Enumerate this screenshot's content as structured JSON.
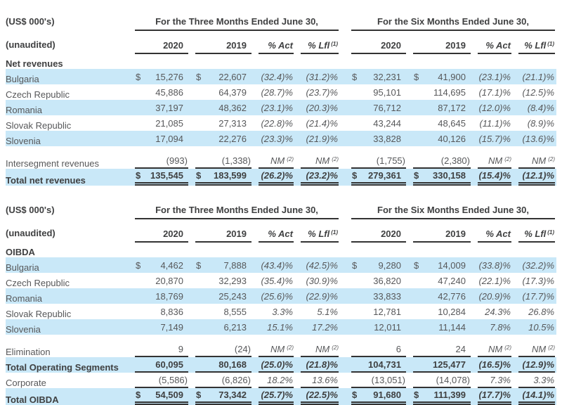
{
  "colors": {
    "row_highlight": "#c9e8f8",
    "text": "#57585a",
    "bold_text": "#3f4041",
    "rule": "#333333"
  },
  "labels": {
    "units": "(US$ 000's)",
    "unaudited": "(unaudited)"
  },
  "group_headers": [
    "For the Three Months Ended June 30,",
    "For the Six Months Ended June 30,"
  ],
  "column_headers": {
    "y2020": "2020",
    "y2019": "2019",
    "act": "% Act",
    "lfl": "% Lfl",
    "lfl_sup": "(1)"
  },
  "tables": [
    {
      "name": "net-revenues",
      "section": "Net revenues",
      "rows": [
        {
          "label": "Bulgaria",
          "shade": true,
          "cells": [
            "$|15,276",
            "$|22,607",
            "(32.4)%",
            "(31.2)%",
            "$|32,231",
            "$|41,900",
            "(23.1)%",
            "(21.1)%"
          ]
        },
        {
          "label": "Czech Republic",
          "cells": [
            "45,886",
            "64,379",
            "(28.7)%",
            "(23.7)%",
            "95,101",
            "114,695",
            "(17.1)%",
            "(12.5)%"
          ]
        },
        {
          "label": "Romania",
          "shade": true,
          "cells": [
            "37,197",
            "48,362",
            "(23.1)%",
            "(20.3)%",
            "76,712",
            "87,172",
            "(12.0)%",
            "(8.4)%"
          ]
        },
        {
          "label": "Slovak Republic",
          "cells": [
            "21,085",
            "27,313",
            "(22.8)%",
            "(21.4)%",
            "43,244",
            "48,645",
            "(11.1)%",
            "(8.9)%"
          ]
        },
        {
          "label": "Slovenia",
          "shade": true,
          "cells": [
            "17,094",
            "22,276",
            "(23.3)%",
            "(21.9)%",
            "33,828",
            "40,126",
            "(15.7)%",
            "(13.6)%"
          ]
        },
        {
          "label": "Intersegment revenues",
          "gap": true,
          "rule": "below",
          "cells": [
            "(993)",
            "(1,338)",
            "NM^(2)",
            "NM^(2)",
            "(1,755)",
            "(2,380)",
            "NM^(2)",
            "NM^(2)"
          ]
        },
        {
          "label": "Total net revenues",
          "shade": true,
          "bold": true,
          "rule": "double",
          "cells": [
            "$|135,545",
            "$|183,599",
            "(26.2)%",
            "(23.2)%",
            "$|279,361",
            "$|330,158",
            "(15.4)%",
            "(12.1)%"
          ]
        }
      ]
    },
    {
      "name": "oibda",
      "section": "OIBDA",
      "rows": [
        {
          "label": "Bulgaria",
          "shade": true,
          "cells": [
            "$|4,462",
            "$|7,888",
            "(43.4)%",
            "(42.5)%",
            "$|9,280",
            "$|14,009",
            "(33.8)%",
            "(32.2)%"
          ]
        },
        {
          "label": "Czech Republic",
          "cells": [
            "20,870",
            "32,293",
            "(35.4)%",
            "(30.9)%",
            "36,820",
            "47,240",
            "(22.1)%",
            "(17.3)%"
          ]
        },
        {
          "label": "Romania",
          "shade": true,
          "cells": [
            "18,769",
            "25,243",
            "(25.6)%",
            "(22.9)%",
            "33,833",
            "42,776",
            "(20.9)%",
            "(17.7)%"
          ]
        },
        {
          "label": "Slovak Republic",
          "cells": [
            "8,836",
            "8,555",
            "3.3%",
            "5.1%",
            "12,781",
            "10,284",
            "24.3%",
            "26.8%"
          ]
        },
        {
          "label": "Slovenia",
          "shade": true,
          "cells": [
            "7,149",
            "6,213",
            "15.1%",
            "17.2%",
            "12,011",
            "11,144",
            "7.8%",
            "10.5%"
          ]
        },
        {
          "label": "Elimination",
          "gap": true,
          "rule": "below",
          "cells": [
            "9",
            "(24)",
            "NM^(2)",
            "NM^(2)",
            "6",
            "24",
            "NM^(2)",
            "NM^(2)"
          ]
        },
        {
          "label": "Total Operating Segments",
          "shade": true,
          "bold": true,
          "rule": "below",
          "cells": [
            "60,095",
            "80,168",
            "(25.0)%",
            "(21.8)%",
            "104,731",
            "125,477",
            "(16.5)%",
            "(12.9)%"
          ]
        },
        {
          "label": "Corporate",
          "rule": "below",
          "cells": [
            "(5,586)",
            "(6,826)",
            "18.2%",
            "13.6%",
            "(13,051)",
            "(14,078)",
            "7.3%",
            "3.3%"
          ]
        },
        {
          "label": "Total OIBDA",
          "shade": true,
          "bold": true,
          "rule": "double",
          "cells": [
            "$|54,509",
            "$|73,342",
            "(25.7)%",
            "(22.5)%",
            "$|91,680",
            "$|111,399",
            "(17.7)%",
            "(14.1)%"
          ]
        }
      ]
    }
  ]
}
